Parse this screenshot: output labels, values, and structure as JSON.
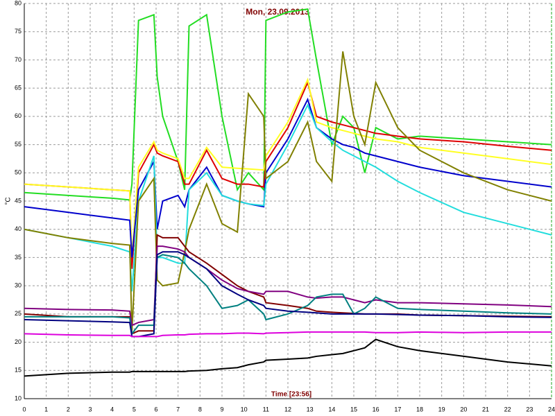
{
  "chart_data": {
    "type": "line",
    "title": "Mon, 23.09.2013",
    "xlabel": "Time [23:56]",
    "ylabel": "°C",
    "x": [
      0,
      2,
      4,
      4.8,
      4.9,
      5.2,
      5.9,
      6.05,
      6.3,
      7,
      7.3,
      7.5,
      8.3,
      9,
      9.7,
      10.2,
      10.9,
      11,
      12,
      12.9,
      13.3,
      14,
      14.5,
      15,
      15.5,
      16,
      17,
      18,
      20,
      22,
      24
    ],
    "series": [
      {
        "color": "#22dd22",
        "values": [
          46.5,
          46,
          45.5,
          45.2,
          48,
          77,
          78,
          67,
          60,
          52,
          47,
          76,
          78,
          60,
          47,
          50,
          47,
          77,
          78.5,
          79,
          70,
          55,
          60,
          58,
          50,
          58,
          56,
          56.5,
          56,
          55.5,
          55
        ]
      },
      {
        "color": "#dd0000",
        "values": [
          48,
          47.5,
          47,
          46.8,
          33,
          50,
          55,
          53.5,
          53,
          52,
          48,
          48,
          54,
          49,
          48,
          48,
          47.5,
          52,
          58,
          66,
          60,
          59,
          58.5,
          58,
          57.5,
          57,
          56.5,
          56,
          55.5,
          54.7,
          54
        ]
      },
      {
        "color": "#ffff22",
        "values": [
          48,
          47.5,
          47,
          46.8,
          35,
          51,
          55.5,
          54,
          53.5,
          52.5,
          49,
          49,
          54.5,
          51,
          50.8,
          50.7,
          50.5,
          53,
          59,
          66.5,
          59,
          58,
          57.5,
          57,
          56.5,
          56,
          55.5,
          54.5,
          53.5,
          52.5,
          51.5
        ]
      },
      {
        "color": "#0000cc",
        "values": [
          44,
          43,
          42,
          41.6,
          35,
          47,
          52,
          40,
          45,
          46,
          44,
          47,
          51,
          46,
          45,
          44.5,
          44,
          50,
          56,
          63,
          58,
          56,
          55,
          54.5,
          53.5,
          53,
          52,
          51,
          49.5,
          48.5,
          47.5
        ]
      },
      {
        "color": "#22dddd",
        "values": [
          40,
          38.5,
          37,
          36,
          29,
          45,
          53,
          35,
          35,
          34,
          34,
          47,
          50,
          46,
          45,
          44.5,
          44.2,
          48,
          55,
          62,
          58,
          55.5,
          54,
          53,
          52,
          51,
          48.5,
          46.5,
          43,
          41,
          39
        ]
      },
      {
        "color": "#808000",
        "values": [
          40,
          38.5,
          37.5,
          37.2,
          22,
          45,
          49,
          31,
          30,
          30.5,
          36,
          40,
          48,
          41,
          39.5,
          64,
          60,
          49,
          52,
          59,
          52,
          48.5,
          71.5,
          60,
          55,
          66,
          58,
          54,
          50,
          47,
          45
        ]
      },
      {
        "color": "#800000",
        "values": [
          25,
          24.5,
          24.5,
          24.5,
          21.5,
          22,
          22,
          39,
          38.5,
          38.5,
          37,
          36,
          34,
          32,
          30,
          29,
          28,
          27,
          26.5,
          26,
          25.5,
          25.3,
          25.2,
          25.1,
          25,
          25,
          25,
          24.8,
          24.7,
          24.6,
          24.5
        ]
      },
      {
        "color": "#800080",
        "values": [
          26,
          25.8,
          25.7,
          25.5,
          23,
          23.5,
          24,
          37,
          37,
          36.5,
          36,
          35,
          33,
          31,
          29.5,
          29,
          28.5,
          29,
          29,
          28,
          27.8,
          28,
          28,
          27.5,
          27,
          27.5,
          27,
          27,
          26.8,
          26.6,
          26.3
        ]
      },
      {
        "color": "#008080",
        "values": [
          24.5,
          24.5,
          24.5,
          24.3,
          21.5,
          23,
          23,
          35,
          35.5,
          35,
          34,
          33,
          30,
          26,
          26.5,
          27.5,
          25,
          24,
          25,
          26.5,
          28,
          28.5,
          28.5,
          25,
          26,
          28,
          26,
          25.8,
          25.5,
          25.2,
          25
        ]
      },
      {
        "color": "#000080",
        "values": [
          24,
          23.8,
          23.6,
          23.5,
          21,
          21,
          21.5,
          35.5,
          36,
          36,
          35.5,
          35,
          33,
          30,
          28.5,
          27.5,
          26.5,
          26,
          25.5,
          25.3,
          25.2,
          25,
          25,
          25,
          25,
          25,
          24.9,
          24.8,
          24.7,
          24.5,
          24.4
        ]
      },
      {
        "color": "#dd00dd",
        "values": [
          21.5,
          21.3,
          21.2,
          21.2,
          21,
          21,
          21,
          21,
          21.2,
          21.3,
          21.3,
          21.4,
          21.5,
          21.5,
          21.6,
          21.6,
          21.5,
          21.6,
          21.7,
          21.8,
          21.8,
          21.8,
          21.8,
          21.8,
          21.8,
          21.7,
          21.7,
          21.8,
          21.7,
          21.8,
          21.8
        ]
      },
      {
        "color": "#000000",
        "values": [
          14,
          14.5,
          14.7,
          14.7,
          14.8,
          14.8,
          14.8,
          14.8,
          14.8,
          14.8,
          14.8,
          14.9,
          15,
          15.3,
          15.5,
          16,
          16.5,
          16.8,
          17,
          17.2,
          17.5,
          17.8,
          18,
          18.5,
          19,
          20.5,
          19.2,
          18.5,
          17.5,
          16.5,
          15.8
        ]
      }
    ],
    "xlim": [
      0,
      24
    ],
    "xticks": [
      0,
      1,
      2,
      3,
      4,
      5,
      6,
      7,
      8,
      9,
      10,
      11,
      12,
      13,
      14,
      15,
      16,
      17,
      18,
      19,
      20,
      21,
      22,
      23,
      24
    ],
    "ylim": [
      10,
      80
    ],
    "yticks": [
      10,
      15,
      20,
      25,
      30,
      35,
      40,
      45,
      50,
      55,
      60,
      65,
      70,
      75,
      80
    ],
    "grid": true
  }
}
